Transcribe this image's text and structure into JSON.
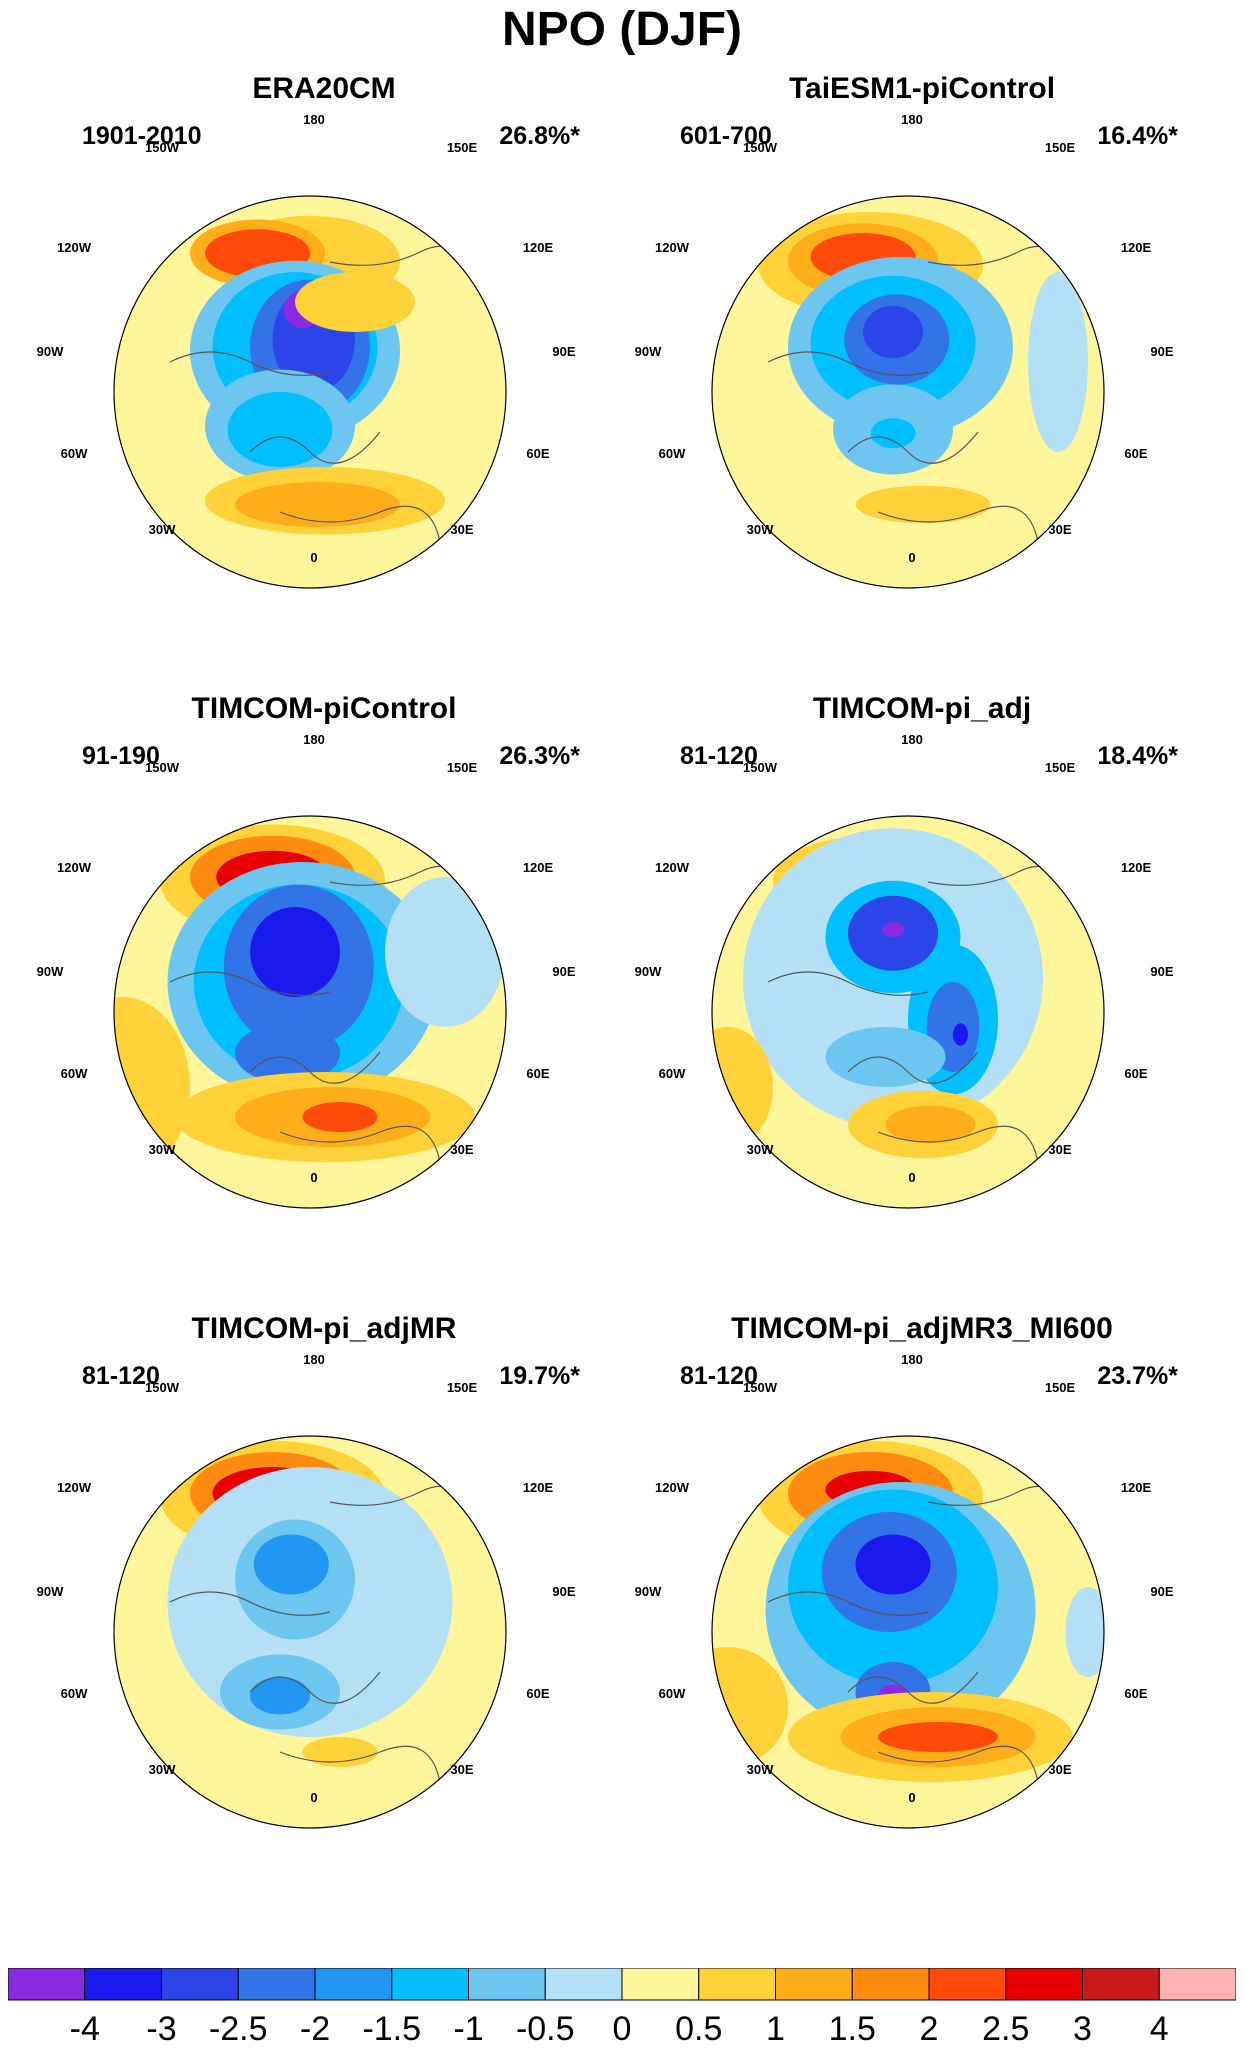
{
  "title": "NPO (DJF)",
  "colorbar": {
    "colors": [
      "#8a2be2",
      "#1a1aee",
      "#2b45e8",
      "#3273e8",
      "#2196f3",
      "#00bfff",
      "#6cc6f0",
      "#b3e0f5",
      "#fff59a",
      "#ffd23a",
      "#ffae1a",
      "#ff8a10",
      "#ff4a0a",
      "#e60000",
      "#cc1a1a",
      "#ffb3b3"
    ],
    "labels": [
      "-4",
      "-3",
      "-2.5",
      "-2",
      "-1.5",
      "-1",
      "-0.5",
      "0",
      "0.5",
      "1",
      "1.5",
      "2",
      "2.5",
      "3",
      "4"
    ]
  },
  "longitude_labels": {
    "top": "180",
    "upper_left": "150W",
    "upper_right": "150E",
    "mid_upper_left": "120W",
    "mid_upper_right": "120E",
    "left": "90W",
    "right": "90E",
    "mid_lower_left": "60W",
    "mid_lower_right": "60E",
    "lower_left": "30W",
    "lower_right": "30E",
    "bottom": "0"
  },
  "panels": [
    {
      "title": "ERA20CM",
      "period": "1901-2010",
      "variance": "26.8%*"
    },
    {
      "title": "TaiESM1-piControl",
      "period": "601-700",
      "variance": "16.4%*"
    },
    {
      "title": "TIMCOM-piControl",
      "period": "91-190",
      "variance": "26.3%*"
    },
    {
      "title": "TIMCOM-pi_adj",
      "period": "81-120",
      "variance": "18.4%*"
    },
    {
      "title": "TIMCOM-pi_adjMR",
      "period": "81-120",
      "variance": "19.7%*"
    },
    {
      "title": "TIMCOM-pi_adjMR3_MI600",
      "period": "81-120",
      "variance": "23.7%*"
    }
  ]
}
